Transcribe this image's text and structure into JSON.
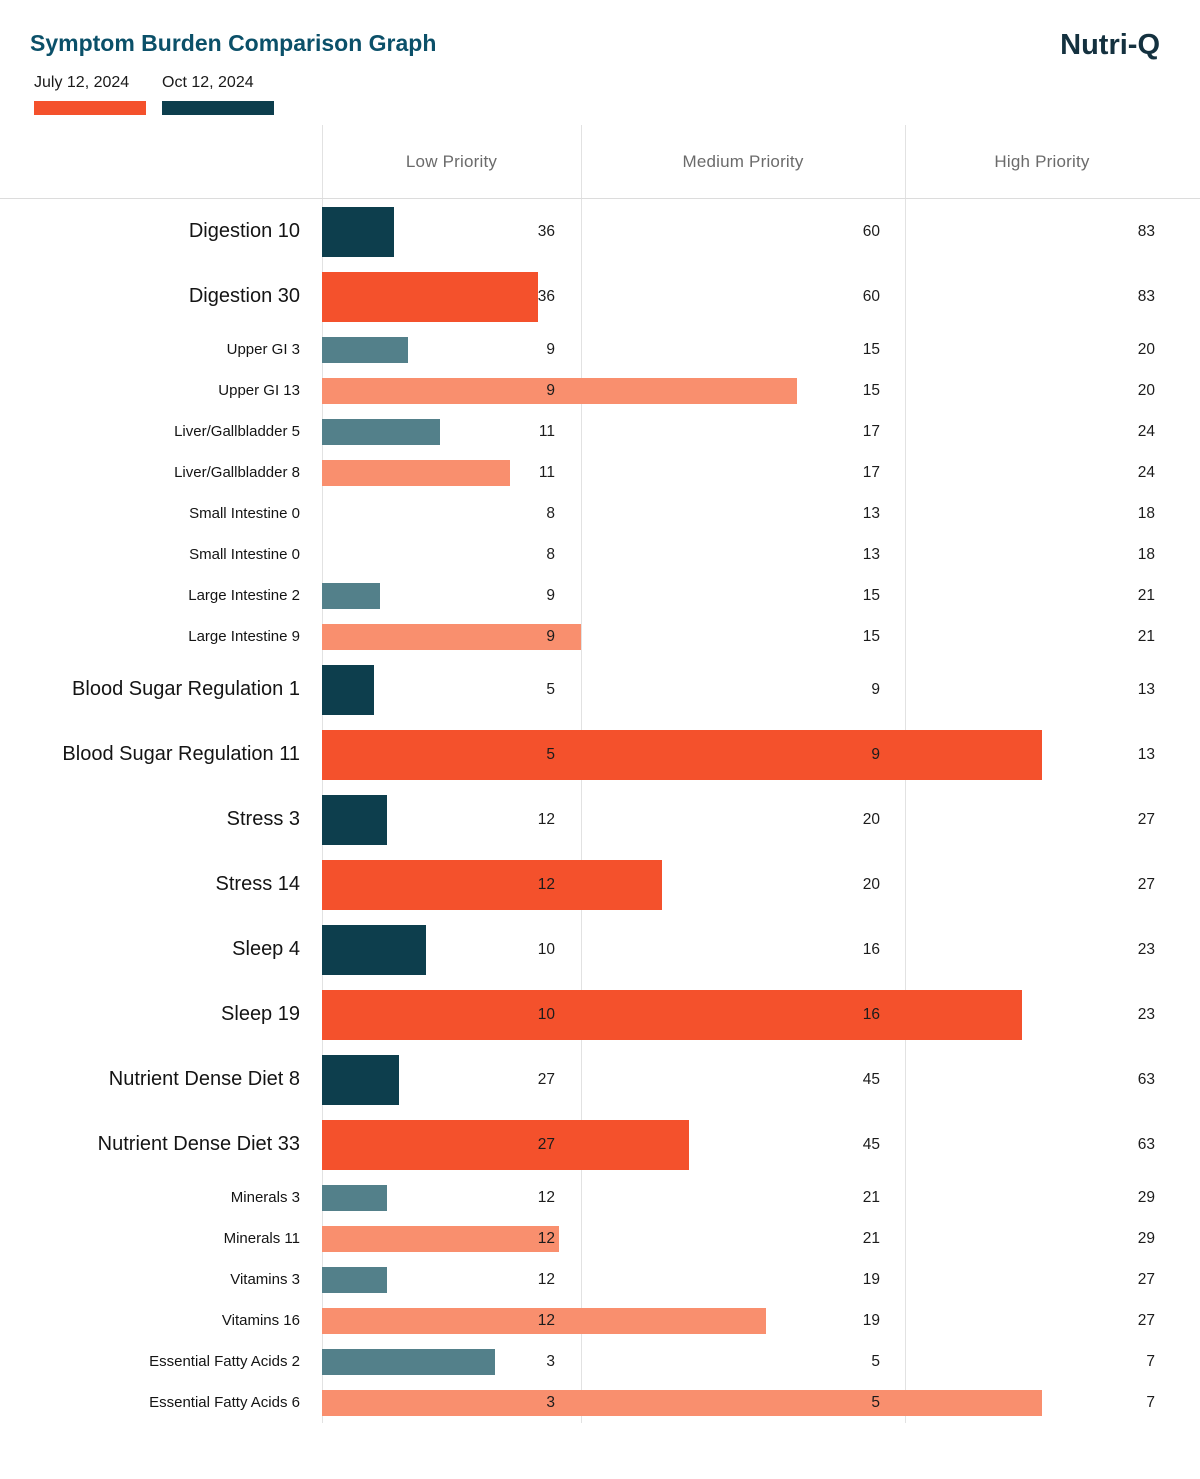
{
  "header": {
    "title": "Symptom Burden Comparison Graph",
    "brand": "Nutri-Q"
  },
  "legend": [
    {
      "label": "July 12, 2024",
      "series": "jul"
    },
    {
      "label": "Oct 12, 2024",
      "series": "oct"
    }
  ],
  "columns": [
    "Low Priority",
    "Medium Priority",
    "High Priority"
  ],
  "colors": {
    "jul_major": "#f4512c",
    "jul_minor": "#f98f6e",
    "oct_major": "#0d3e4d",
    "oct_minor": "#53808a",
    "title_text": "#0b5069",
    "brand_text": "#14313f",
    "gridline": "#e2e2e2",
    "column_header_text": "#6b6b6b",
    "number_text": "#1c1c1c"
  },
  "chart_data": {
    "type": "bar",
    "orientation": "horizontal",
    "title": "Symptom Burden Comparison Graph",
    "legend_entries": [
      "July 12, 2024",
      "Oct 12, 2024"
    ],
    "priority_zones": [
      "Low Priority",
      "Medium Priority",
      "High Priority"
    ],
    "note": "Each row shows a symptom-category score; bar length is scaled piecewise across the Low/Medium/High priority zones using that row's thresholds (low, medium, high).",
    "rows": [
      {
        "label": "Digestion 10",
        "value": 10,
        "series": "Oct 12, 2024",
        "tier": "major",
        "low": 36,
        "medium": 60,
        "high": 83
      },
      {
        "label": "Digestion 30",
        "value": 30,
        "series": "July 12, 2024",
        "tier": "major",
        "low": 36,
        "medium": 60,
        "high": 83
      },
      {
        "label": "Upper GI 3",
        "value": 3,
        "series": "Oct 12, 2024",
        "tier": "minor",
        "low": 9,
        "medium": 15,
        "high": 20
      },
      {
        "label": "Upper GI 13",
        "value": 13,
        "series": "July 12, 2024",
        "tier": "minor",
        "low": 9,
        "medium": 15,
        "high": 20
      },
      {
        "label": "Liver/Gallbladder 5",
        "value": 5,
        "series": "Oct 12, 2024",
        "tier": "minor",
        "low": 11,
        "medium": 17,
        "high": 24
      },
      {
        "label": "Liver/Gallbladder 8",
        "value": 8,
        "series": "July 12, 2024",
        "tier": "minor",
        "low": 11,
        "medium": 17,
        "high": 24
      },
      {
        "label": "Small Intestine 0",
        "value": 0,
        "series": "Oct 12, 2024",
        "tier": "minor",
        "low": 8,
        "medium": 13,
        "high": 18
      },
      {
        "label": "Small Intestine 0",
        "value": 0,
        "series": "July 12, 2024",
        "tier": "minor",
        "low": 8,
        "medium": 13,
        "high": 18
      },
      {
        "label": "Large Intestine 2",
        "value": 2,
        "series": "Oct 12, 2024",
        "tier": "minor",
        "low": 9,
        "medium": 15,
        "high": 21
      },
      {
        "label": "Large Intestine 9",
        "value": 9,
        "series": "July 12, 2024",
        "tier": "minor",
        "low": 9,
        "medium": 15,
        "high": 21
      },
      {
        "label": "Blood Sugar Regulation 1",
        "value": 1,
        "series": "Oct 12, 2024",
        "tier": "major",
        "low": 5,
        "medium": 9,
        "high": 13
      },
      {
        "label": "Blood Sugar Regulation 11",
        "value": 11,
        "series": "July 12, 2024",
        "tier": "major",
        "low": 5,
        "medium": 9,
        "high": 13
      },
      {
        "label": "Stress 3",
        "value": 3,
        "series": "Oct 12, 2024",
        "tier": "major",
        "low": 12,
        "medium": 20,
        "high": 27
      },
      {
        "label": "Stress 14",
        "value": 14,
        "series": "July 12, 2024",
        "tier": "major",
        "low": 12,
        "medium": 20,
        "high": 27
      },
      {
        "label": "Sleep 4",
        "value": 4,
        "series": "Oct 12, 2024",
        "tier": "major",
        "low": 10,
        "medium": 16,
        "high": 23
      },
      {
        "label": "Sleep 19",
        "value": 19,
        "series": "July 12, 2024",
        "tier": "major",
        "low": 10,
        "medium": 16,
        "high": 23
      },
      {
        "label": "Nutrient Dense Diet 8",
        "value": 8,
        "series": "Oct 12, 2024",
        "tier": "major",
        "low": 27,
        "medium": 45,
        "high": 63
      },
      {
        "label": "Nutrient Dense Diet 33",
        "value": 33,
        "series": "July 12, 2024",
        "tier": "major",
        "low": 27,
        "medium": 45,
        "high": 63
      },
      {
        "label": "Minerals 3",
        "value": 3,
        "series": "Oct 12, 2024",
        "tier": "minor",
        "low": 12,
        "medium": 21,
        "high": 29
      },
      {
        "label": "Minerals 11",
        "value": 11,
        "series": "July 12, 2024",
        "tier": "minor",
        "low": 12,
        "medium": 21,
        "high": 29
      },
      {
        "label": "Vitamins 3",
        "value": 3,
        "series": "Oct 12, 2024",
        "tier": "minor",
        "low": 12,
        "medium": 19,
        "high": 27
      },
      {
        "label": "Vitamins 16",
        "value": 16,
        "series": "July 12, 2024",
        "tier": "minor",
        "low": 12,
        "medium": 19,
        "high": 27
      },
      {
        "label": "Essential Fatty Acids 2",
        "value": 2,
        "series": "Oct 12, 2024",
        "tier": "minor",
        "low": 3,
        "medium": 5,
        "high": 7
      },
      {
        "label": "Essential Fatty Acids 6",
        "value": 6,
        "series": "July 12, 2024",
        "tier": "minor",
        "low": 3,
        "medium": 5,
        "high": 7
      }
    ]
  }
}
